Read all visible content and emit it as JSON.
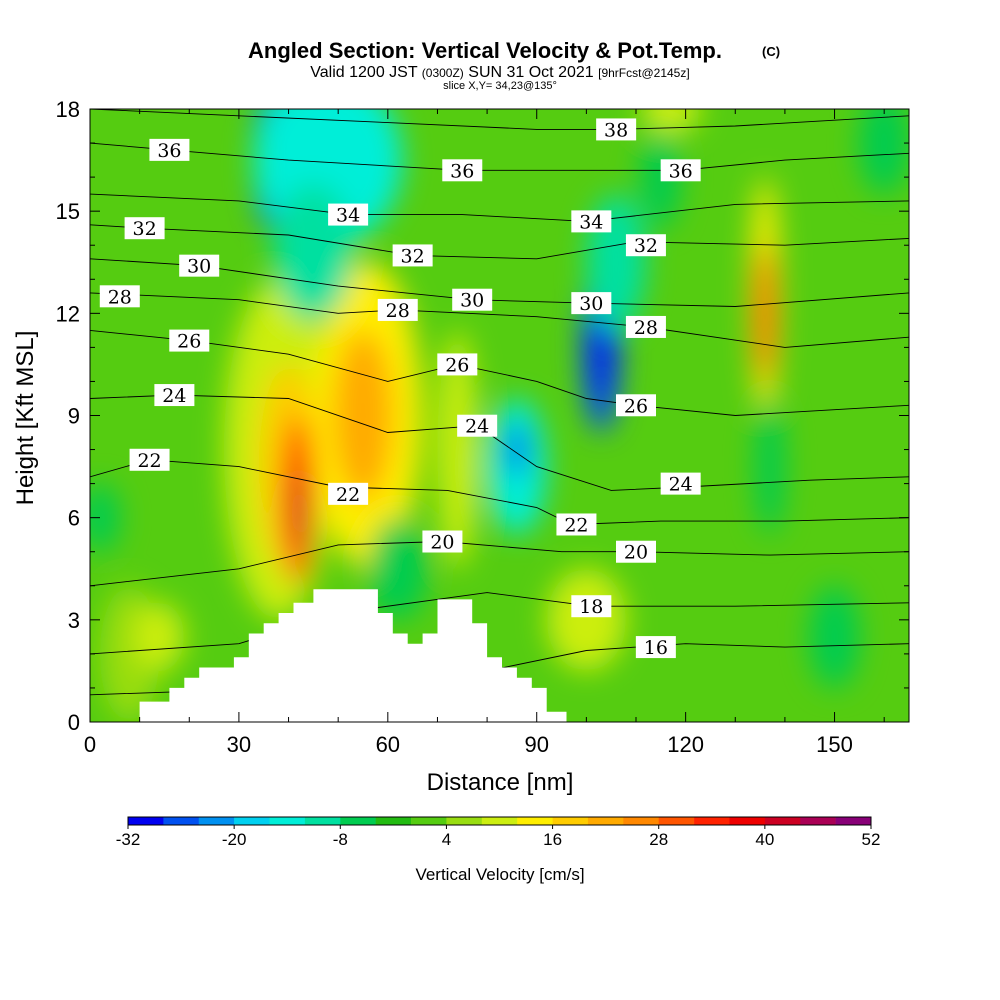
{
  "title": {
    "main": "Angled Section: Vertical Velocity & Pot.Temp.",
    "main_suffix": "(C)",
    "valid_a": "Valid 1200 JST",
    "valid_b": "(0300Z)",
    "valid_c": "SUN 31 Oct 2021",
    "valid_d": "[9hrFcst@2145z]",
    "slice": "slice X,Y= 34,23@135°"
  },
  "chart_data": {
    "type": "heatmap",
    "xlabel": "Distance [nm]",
    "ylabel": "Height [Kft MSL]",
    "xlim": [
      0,
      165
    ],
    "ylim": [
      0,
      18
    ],
    "x_ticks": [
      "0",
      "30",
      "60",
      "90",
      "120",
      "150"
    ],
    "y_ticks": [
      "0",
      "3",
      "6",
      "9",
      "12",
      "15",
      "18"
    ],
    "colorbar": {
      "label": "Vertical Velocity [cm/s]",
      "tick_labels": [
        "-32",
        "-20",
        "-8",
        "4",
        "16",
        "28",
        "40",
        "52"
      ],
      "min": -32,
      "max": 52,
      "step": 4,
      "colors": [
        "#0000f0",
        "#0050f0",
        "#0090f0",
        "#00d0f0",
        "#00eed8",
        "#00e0a0",
        "#00cc50",
        "#22bb11",
        "#55cc11",
        "#99dd11",
        "#ccee11",
        "#ffee00",
        "#ffcc00",
        "#ffaa00",
        "#ff8800",
        "#ff5500",
        "#ff2200",
        "#ee0000",
        "#cc0022",
        "#aa0055",
        "#880077"
      ]
    },
    "background_value": 0,
    "velocity_cells": [
      {
        "x": 8,
        "y": 2.0,
        "rx": 6,
        "ry": 2.0,
        "v": 6
      },
      {
        "x": 14,
        "y": 2.5,
        "rx": 5,
        "ry": 1.0,
        "v": 10
      },
      {
        "x": 2,
        "y": 6.0,
        "rx": 4,
        "ry": 1.0,
        "v": -6
      },
      {
        "x": 38,
        "y": 8.0,
        "rx": 11,
        "ry": 5.0,
        "v": 10
      },
      {
        "x": 40,
        "y": 7.5,
        "rx": 6,
        "ry": 3.0,
        "v": 16
      },
      {
        "x": 42,
        "y": 6.5,
        "rx": 3,
        "ry": 2.5,
        "v": 34
      },
      {
        "x": 42,
        "y": 6.2,
        "rx": 1.5,
        "ry": 1.2,
        "v": 42
      },
      {
        "x": 56,
        "y": 9.0,
        "rx": 11,
        "ry": 4.5,
        "v": 12
      },
      {
        "x": 55,
        "y": 9.0,
        "rx": 6,
        "ry": 2.5,
        "v": 20
      },
      {
        "x": 74,
        "y": 8.0,
        "rx": 4,
        "ry": 3.5,
        "v": 10
      },
      {
        "x": 62,
        "y": 4.5,
        "rx": 6,
        "ry": 1.5,
        "v": -6
      },
      {
        "x": 36,
        "y": 16.5,
        "rx": 3,
        "ry": 2.0,
        "v": -26
      },
      {
        "x": 36,
        "y": 16.0,
        "rx": 1.5,
        "ry": 1.5,
        "v": -32
      },
      {
        "x": 48,
        "y": 16.5,
        "rx": 15,
        "ry": 2.5,
        "v": -14
      },
      {
        "x": 45,
        "y": 13.8,
        "rx": 8,
        "ry": 2.0,
        "v": -12
      },
      {
        "x": 86,
        "y": 7.5,
        "rx": 6,
        "ry": 2.0,
        "v": -14
      },
      {
        "x": 86,
        "y": 8.0,
        "rx": 2,
        "ry": 0.8,
        "v": -26
      },
      {
        "x": 103,
        "y": 11.0,
        "rx": 4,
        "ry": 2.5,
        "v": -26
      },
      {
        "x": 103,
        "y": 11.0,
        "rx": 2,
        "ry": 1.5,
        "v": -30
      },
      {
        "x": 106,
        "y": 13.5,
        "rx": 6,
        "ry": 2.0,
        "v": -12
      },
      {
        "x": 115,
        "y": 16.0,
        "rx": 4,
        "ry": 1.5,
        "v": -8
      },
      {
        "x": 100,
        "y": 3.0,
        "rx": 8,
        "ry": 1.5,
        "v": 8
      },
      {
        "x": 136,
        "y": 12.5,
        "rx": 3,
        "ry": 3.5,
        "v": 14
      },
      {
        "x": 136,
        "y": 12.0,
        "rx": 2,
        "ry": 2.0,
        "v": 28
      },
      {
        "x": 137,
        "y": 7.5,
        "rx": 3,
        "ry": 2.0,
        "v": -6
      },
      {
        "x": 117,
        "y": 18.0,
        "rx": 6,
        "ry": 0.7,
        "v": 10
      },
      {
        "x": 160,
        "y": 17.0,
        "rx": 5,
        "ry": 1.5,
        "v": -6
      },
      {
        "x": 150,
        "y": 2.5,
        "rx": 5,
        "ry": 1.5,
        "v": -8
      }
    ],
    "theta_contours": [
      {
        "label": "16",
        "label_x": 114,
        "label_y": 2.2,
        "pts": [
          [
            0,
            0.8
          ],
          [
            40,
            1.0
          ],
          [
            80,
            1.5
          ],
          [
            100,
            2.1
          ],
          [
            120,
            2.3
          ],
          [
            140,
            2.2
          ],
          [
            165,
            2.3
          ]
        ]
      },
      {
        "label": "18",
        "label_x": 101,
        "label_y": 3.4,
        "pts": [
          [
            0,
            2.0
          ],
          [
            30,
            2.3
          ],
          [
            50,
            3.2
          ],
          [
            80,
            3.8
          ],
          [
            101,
            3.4
          ],
          [
            130,
            3.4
          ],
          [
            165,
            3.5
          ]
        ]
      },
      {
        "label": "20",
        "label_x": 71,
        "label_y": 5.3,
        "pts": [
          [
            0,
            4.0
          ],
          [
            30,
            4.5
          ],
          [
            50,
            5.2
          ],
          [
            71,
            5.3
          ],
          [
            95,
            5.0
          ],
          [
            110,
            5.0
          ],
          [
            137,
            4.9
          ],
          [
            165,
            5.0
          ]
        ]
      },
      {
        "label": "20",
        "label_x": 110,
        "label_y": 5.0,
        "pts": []
      },
      {
        "label": "22",
        "label_x": 12,
        "label_y": 7.7,
        "pts": [
          [
            0,
            7.2
          ],
          [
            12,
            7.7
          ],
          [
            30,
            7.5
          ],
          [
            50,
            6.9
          ],
          [
            72,
            6.8
          ],
          [
            90,
            6.3
          ],
          [
            97,
            5.8
          ],
          [
            115,
            5.9
          ],
          [
            140,
            5.9
          ],
          [
            165,
            6.0
          ]
        ]
      },
      {
        "label": "22",
        "label_x": 52,
        "label_y": 6.7,
        "pts": []
      },
      {
        "label": "22",
        "label_x": 98,
        "label_y": 5.8,
        "pts": []
      },
      {
        "label": "24",
        "label_x": 17,
        "label_y": 9.6,
        "pts": [
          [
            0,
            9.5
          ],
          [
            17,
            9.6
          ],
          [
            40,
            9.5
          ],
          [
            60,
            8.5
          ],
          [
            78,
            8.7
          ],
          [
            90,
            7.5
          ],
          [
            105,
            6.8
          ],
          [
            120,
            6.9
          ],
          [
            145,
            7.1
          ],
          [
            165,
            7.2
          ]
        ]
      },
      {
        "label": "24",
        "label_x": 78,
        "label_y": 8.7,
        "pts": []
      },
      {
        "label": "24",
        "label_x": 119,
        "label_y": 7.0,
        "pts": []
      },
      {
        "label": "26",
        "label_x": 20,
        "label_y": 11.2,
        "pts": [
          [
            0,
            11.5
          ],
          [
            20,
            11.2
          ],
          [
            40,
            10.8
          ],
          [
            60,
            10.0
          ],
          [
            74,
            10.5
          ],
          [
            90,
            10.0
          ],
          [
            100,
            9.5
          ],
          [
            110,
            9.3
          ],
          [
            130,
            9.0
          ],
          [
            165,
            9.3
          ]
        ]
      },
      {
        "label": "26",
        "label_x": 74,
        "label_y": 10.5,
        "pts": []
      },
      {
        "label": "26",
        "label_x": 110,
        "label_y": 9.3,
        "pts": []
      },
      {
        "label": "28",
        "label_x": 6,
        "label_y": 12.5,
        "pts": [
          [
            0,
            12.6
          ],
          [
            30,
            12.4
          ],
          [
            50,
            12.0
          ],
          [
            62,
            12.1
          ],
          [
            90,
            11.9
          ],
          [
            112,
            11.6
          ],
          [
            140,
            11.0
          ],
          [
            165,
            11.3
          ]
        ]
      },
      {
        "label": "28",
        "label_x": 62,
        "label_y": 12.1,
        "pts": []
      },
      {
        "label": "28",
        "label_x": 112,
        "label_y": 11.6,
        "pts": []
      },
      {
        "label": "30",
        "label_x": 22,
        "label_y": 13.4,
        "pts": [
          [
            0,
            13.6
          ],
          [
            22,
            13.4
          ],
          [
            50,
            12.8
          ],
          [
            77,
            12.4
          ],
          [
            100,
            12.3
          ],
          [
            130,
            12.2
          ],
          [
            165,
            12.6
          ]
        ]
      },
      {
        "label": "30",
        "label_x": 77,
        "label_y": 12.4,
        "pts": []
      },
      {
        "label": "30",
        "label_x": 101,
        "label_y": 12.3,
        "pts": []
      },
      {
        "label": "32",
        "label_x": 11,
        "label_y": 14.5,
        "pts": [
          [
            0,
            14.6
          ],
          [
            11,
            14.5
          ],
          [
            40,
            14.3
          ],
          [
            65,
            13.7
          ],
          [
            90,
            13.6
          ],
          [
            110,
            14.1
          ],
          [
            140,
            14.0
          ],
          [
            165,
            14.2
          ]
        ]
      },
      {
        "label": "32",
        "label_x": 65,
        "label_y": 13.7,
        "pts": []
      },
      {
        "label": "32",
        "label_x": 112,
        "label_y": 14.0,
        "pts": []
      },
      {
        "label": "34",
        "label_x": 52,
        "label_y": 14.9,
        "pts": [
          [
            0,
            15.5
          ],
          [
            30,
            15.3
          ],
          [
            52,
            14.9
          ],
          [
            75,
            14.9
          ],
          [
            100,
            14.7
          ],
          [
            130,
            15.2
          ],
          [
            165,
            15.3
          ]
        ]
      },
      {
        "label": "34",
        "label_x": 101,
        "label_y": 14.7,
        "pts": []
      },
      {
        "label": "36",
        "label_x": 16,
        "label_y": 16.8,
        "pts": [
          [
            0,
            17.0
          ],
          [
            16,
            16.8
          ],
          [
            40,
            16.5
          ],
          [
            75,
            16.2
          ],
          [
            100,
            16.2
          ],
          [
            119,
            16.2
          ],
          [
            140,
            16.5
          ],
          [
            165,
            16.7
          ]
        ]
      },
      {
        "label": "36",
        "label_x": 75,
        "label_y": 16.2,
        "pts": []
      },
      {
        "label": "36",
        "label_x": 119,
        "label_y": 16.2,
        "pts": []
      },
      {
        "label": "38",
        "label_x": 106,
        "label_y": 17.4,
        "pts": [
          [
            0,
            18.0
          ],
          [
            60,
            17.6
          ],
          [
            90,
            17.4
          ],
          [
            106,
            17.4
          ],
          [
            130,
            17.5
          ],
          [
            165,
            17.8
          ]
        ]
      }
    ],
    "terrain": [
      [
        10,
        0
      ],
      [
        10,
        0.6
      ],
      [
        16,
        0.6
      ],
      [
        16,
        1.0
      ],
      [
        19,
        1.0
      ],
      [
        19,
        1.3
      ],
      [
        22,
        1.3
      ],
      [
        22,
        1.6
      ],
      [
        29,
        1.6
      ],
      [
        29,
        1.9
      ],
      [
        32,
        1.9
      ],
      [
        32,
        2.6
      ],
      [
        35,
        2.6
      ],
      [
        35,
        2.9
      ],
      [
        38,
        2.9
      ],
      [
        38,
        3.2
      ],
      [
        41,
        3.2
      ],
      [
        41,
        3.5
      ],
      [
        45,
        3.5
      ],
      [
        45,
        3.9
      ],
      [
        58,
        3.9
      ],
      [
        58,
        3.2
      ],
      [
        61,
        3.2
      ],
      [
        61,
        2.6
      ],
      [
        64,
        2.6
      ],
      [
        64,
        2.3
      ],
      [
        67,
        2.3
      ],
      [
        67,
        2.6
      ],
      [
        70,
        2.6
      ],
      [
        70,
        3.6
      ],
      [
        77,
        3.6
      ],
      [
        77,
        2.9
      ],
      [
        80,
        2.9
      ],
      [
        80,
        1.9
      ],
      [
        83,
        1.9
      ],
      [
        83,
        1.6
      ],
      [
        86,
        1.6
      ],
      [
        86,
        1.3
      ],
      [
        89,
        1.3
      ],
      [
        89,
        1.0
      ],
      [
        92,
        1.0
      ],
      [
        92,
        0.3
      ],
      [
        96,
        0.3
      ],
      [
        96,
        0
      ]
    ]
  }
}
